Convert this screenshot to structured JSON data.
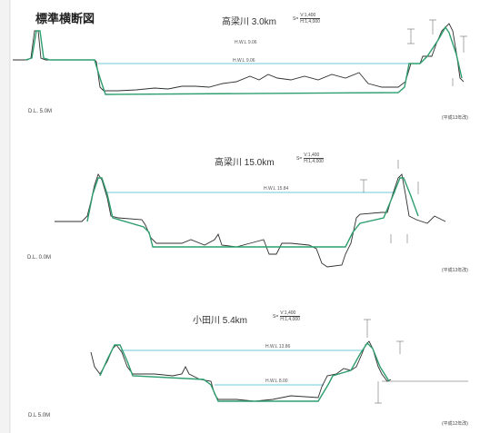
{
  "page_title": "標準横断図",
  "colors": {
    "existing": "#2f2f2f",
    "plan": "#2e9e6e",
    "hwl": "#6fc8d6"
  },
  "sections": [
    {
      "name": "高梁川 3.0km",
      "scale_v": "V:1,400",
      "scale_h": "H:1,4,000",
      "hwl_label": "H.W.L 9.06",
      "hwl_text": "H.W.L 9.06",
      "dl": "D.L. 5.0M",
      "era": "(平成13年改)"
    },
    {
      "name": "高梁川 15.0km",
      "scale_v": "V:1,400",
      "scale_h": "H:1,4,000",
      "hwl_label": "H.W.L 15.84",
      "dl": "D.L. 0.0M",
      "era": "(平成13年改)"
    },
    {
      "name": "小田川 5.4km",
      "scale_v": "V:1,400",
      "scale_h": "H:1,4,000",
      "hwl_label": "H.W.L 13.86",
      "lwl_label": "H.W.L 8.00",
      "dl": "D.L 5.0M",
      "era": "(平成12年改)"
    }
  ]
}
